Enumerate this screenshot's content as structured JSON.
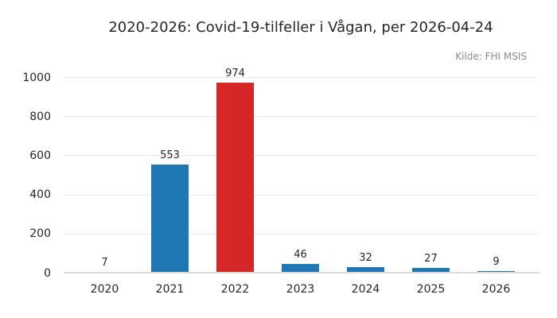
{
  "header": {
    "title": "2020-2026: Covid-19-tilfeller i Vågan, per 2026-04-24",
    "source_note": "Kilde: FHI MSIS"
  },
  "chart_data": {
    "type": "bar",
    "title": "2020-2026: Covid-19-tilfeller i Vågan, per 2026-04-24",
    "source_note": "Kilde: FHI MSIS",
    "categories": [
      "2020",
      "2021",
      "2022",
      "2023",
      "2024",
      "2025",
      "2026"
    ],
    "values": [
      7,
      553,
      974,
      46,
      32,
      27,
      9
    ],
    "bar_colors": [
      "#1f77b4",
      "#1f77b4",
      "#d62728",
      "#1f77b4",
      "#1f77b4",
      "#1f77b4",
      "#1f77b4"
    ],
    "value_labels": [
      7,
      553,
      974,
      46,
      32,
      27,
      9
    ],
    "xlabel": "",
    "ylabel": "",
    "ylim": [
      0,
      1000
    ],
    "yticks": [
      0,
      200,
      400,
      600,
      800,
      1000
    ],
    "grid": true,
    "legend": false
  },
  "colors": {
    "bar_default": "#1f77b4",
    "bar_highlight": "#d62728",
    "grid": "#e8e8e8",
    "axis_line": "#dcdcdc",
    "text": "#262626",
    "muted_text": "#8a8a8a",
    "background": "#ffffff"
  }
}
